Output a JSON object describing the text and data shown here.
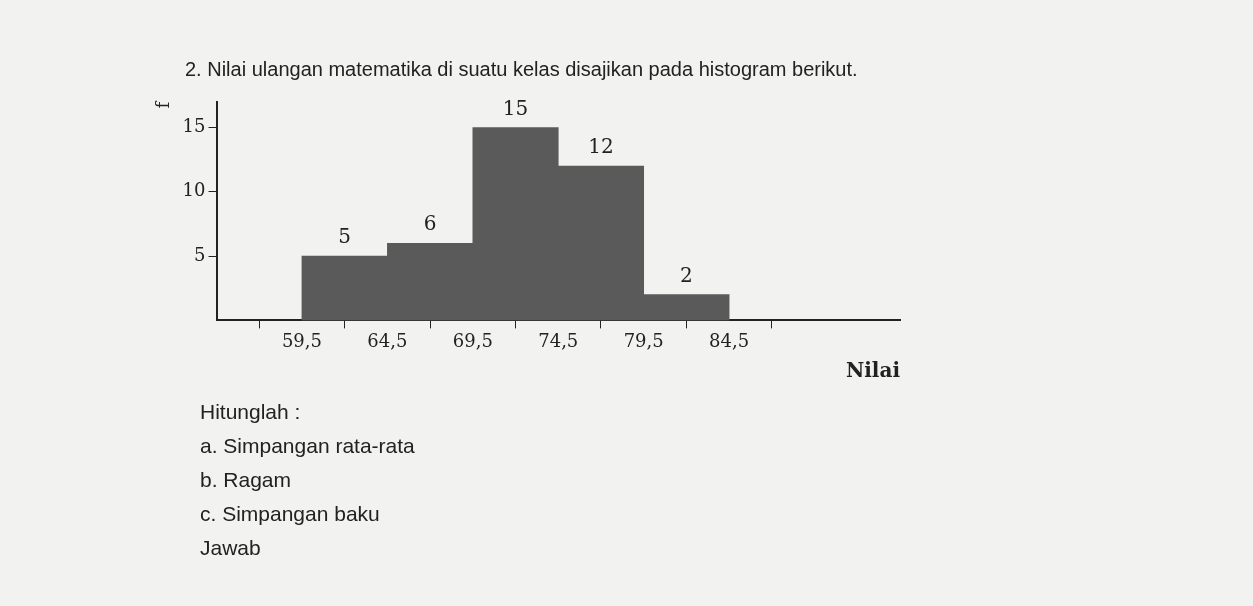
{
  "chart_data": {
    "type": "histogram",
    "title": "2. Nilai ulangan matematika di suatu kelas disajikan pada histogram berikut.",
    "xlabel": "Nilai",
    "ylabel": "f",
    "bins": [
      59.5,
      64.5,
      69.5,
      74.5,
      79.5,
      84.5
    ],
    "values": [
      5,
      6,
      15,
      12,
      2
    ],
    "color": "#5a5a5a",
    "xlim": [
      54.5,
      94.5
    ],
    "xticks": [
      {
        "value": 59.5,
        "label": "59,5"
      },
      {
        "value": 64.5,
        "label": "64,5"
      },
      {
        "value": 69.5,
        "label": "69,5"
      },
      {
        "value": 74.5,
        "label": "74,5"
      },
      {
        "value": 79.5,
        "label": "79,5"
      },
      {
        "value": 84.5,
        "label": "84,5"
      }
    ],
    "ylim": [
      0,
      17
    ],
    "yticks": [
      5,
      10,
      15
    ],
    "grid": false,
    "data_labels": true,
    "annotations": [
      "Hitunglah :",
      "a. Simpangan rata-rata",
      "b. Ragam",
      "c. Simpangan baku",
      "Jawab"
    ]
  }
}
